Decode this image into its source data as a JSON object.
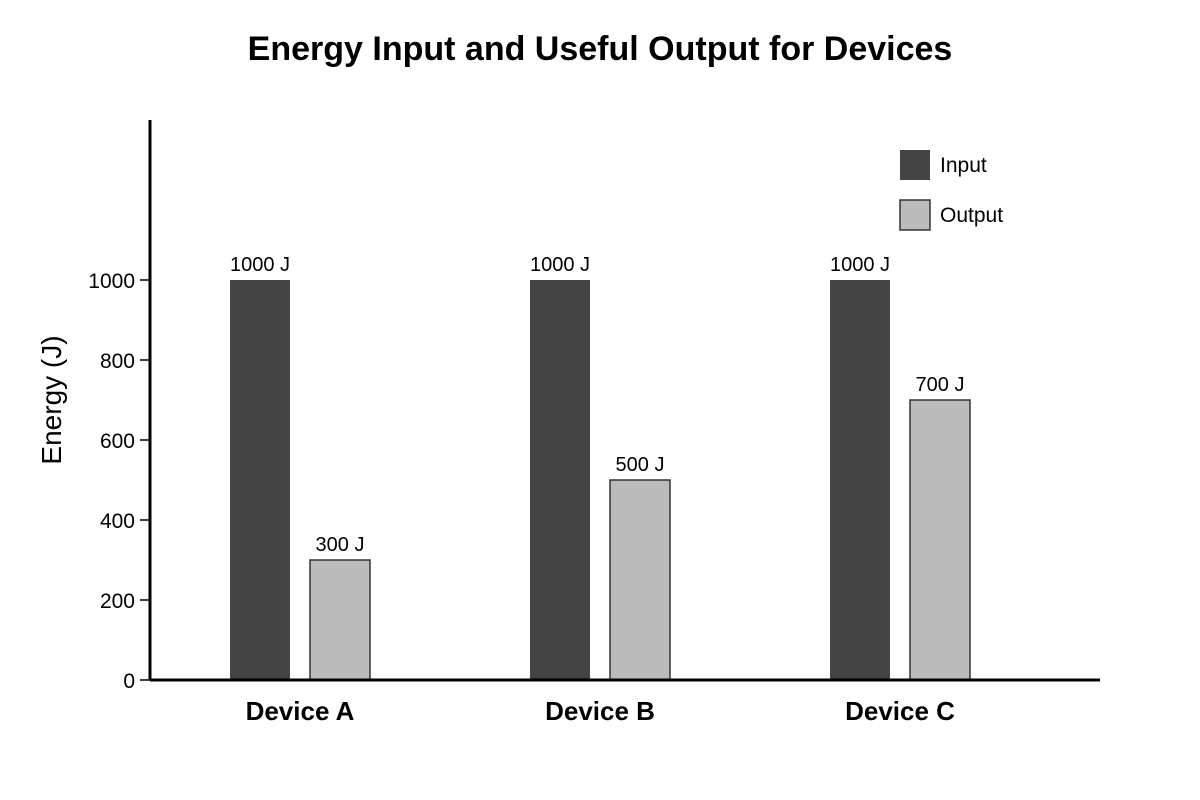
{
  "chart_data": {
    "type": "bar",
    "title": "Energy Input and Useful Output for Devices",
    "xlabel": "",
    "ylabel": "Energy (J)",
    "categories": [
      "Device A",
      "Device B",
      "Device C"
    ],
    "series": [
      {
        "name": "Input",
        "values": [
          1000,
          1000,
          1000
        ],
        "labels": [
          "1000 J",
          "1000 J",
          "1000 J"
        ],
        "color": "#444444"
      },
      {
        "name": "Output",
        "values": [
          300,
          500,
          700
        ],
        "labels": [
          "300 J",
          "500 J",
          "700 J"
        ],
        "color": "#bbbbbb"
      }
    ],
    "ylim": [
      0,
      1000
    ],
    "yticks": [
      0,
      200,
      400,
      600,
      800,
      1000
    ],
    "ytick_labels": [
      "0",
      "200",
      "400",
      "600",
      "800",
      "1000"
    ],
    "grid": false,
    "legend_position": "top-right"
  }
}
